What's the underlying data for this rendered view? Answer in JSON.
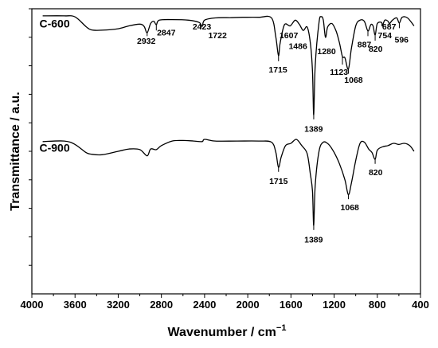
{
  "chart_data": {
    "type": "line",
    "xlabel": "Wavenumber / cm",
    "xlabel_sup": "−1",
    "ylabel": "Transmittance / a.u.",
    "xlim": [
      4000,
      400
    ],
    "x_reversed": true,
    "x_ticks": [
      "4000",
      "3600",
      "3200",
      "2800",
      "2400",
      "2000",
      "1600",
      "1200",
      "800",
      "400"
    ],
    "y_tick_labels_shown": false,
    "grid": false,
    "series": [
      {
        "name": "C-600",
        "points": [
          [
            3900,
            0.62
          ],
          [
            3700,
            0.62
          ],
          [
            3600,
            0.71
          ],
          [
            3500,
            1.55
          ],
          [
            3450,
            1.85
          ],
          [
            3350,
            1.88
          ],
          [
            3200,
            1.75
          ],
          [
            3100,
            1.5
          ],
          [
            3000,
            1.35
          ],
          [
            2960,
            1.55
          ],
          [
            2932,
            2.1
          ],
          [
            2900,
            1.3
          ],
          [
            2870,
            1.1
          ],
          [
            2847,
            1.4
          ],
          [
            2820,
            1.0
          ],
          [
            2700,
            0.95
          ],
          [
            2550,
            1.0
          ],
          [
            2450,
            1.2
          ],
          [
            2423,
            1.55
          ],
          [
            2400,
            1.0
          ],
          [
            2300,
            0.8
          ],
          [
            2150,
            0.78
          ],
          [
            2050,
            0.75
          ],
          [
            1900,
            0.75
          ],
          [
            1780,
            0.8
          ],
          [
            1740,
            2.5
          ],
          [
            1715,
            4.1
          ],
          [
            1700,
            3.0
          ],
          [
            1660,
            1.4
          ],
          [
            1607,
            1.5
          ],
          [
            1560,
            1.0
          ],
          [
            1520,
            1.4
          ],
          [
            1486,
            1.9
          ],
          [
            1450,
            1.6
          ],
          [
            1420,
            3.0
          ],
          [
            1400,
            5.5
          ],
          [
            1389,
            9.3
          ],
          [
            1375,
            5.0
          ],
          [
            1340,
            1.2
          ],
          [
            1320,
            0.7
          ],
          [
            1300,
            1.0
          ],
          [
            1280,
            2.5
          ],
          [
            1260,
            1.6
          ],
          [
            1220,
            1.3
          ],
          [
            1180,
            2.0
          ],
          [
            1150,
            3.0
          ],
          [
            1123,
            4.2
          ],
          [
            1100,
            4.3
          ],
          [
            1068,
            5.3
          ],
          [
            1040,
            3.5
          ],
          [
            1000,
            1.5
          ],
          [
            960,
            1.0
          ],
          [
            920,
            1.1
          ],
          [
            887,
            1.95
          ],
          [
            860,
            1.4
          ],
          [
            840,
            1.5
          ],
          [
            820,
            2.3
          ],
          [
            800,
            1.3
          ],
          [
            760,
            1.2
          ],
          [
            754,
            1.5
          ],
          [
            730,
            1.0
          ],
          [
            700,
            1.1
          ],
          [
            687,
            1.3
          ],
          [
            660,
            1.0
          ],
          [
            620,
            0.8
          ],
          [
            596,
            1.25
          ],
          [
            570,
            0.75
          ],
          [
            520,
            0.8
          ],
          [
            460,
            1.5
          ]
        ]
      },
      {
        "name": "C-900",
        "points": [
          [
            3900,
            11.65
          ],
          [
            3700,
            11.6
          ],
          [
            3600,
            11.9
          ],
          [
            3500,
            12.6
          ],
          [
            3450,
            12.75
          ],
          [
            3350,
            12.8
          ],
          [
            3200,
            12.5
          ],
          [
            3100,
            12.3
          ],
          [
            3000,
            12.35
          ],
          [
            2932,
            12.9
          ],
          [
            2900,
            12.3
          ],
          [
            2847,
            12.35
          ],
          [
            2800,
            12.0
          ],
          [
            2700,
            11.6
          ],
          [
            2600,
            11.55
          ],
          [
            2500,
            11.6
          ],
          [
            2423,
            11.65
          ],
          [
            2400,
            11.45
          ],
          [
            2300,
            11.6
          ],
          [
            2100,
            11.6
          ],
          [
            1900,
            11.6
          ],
          [
            1780,
            11.7
          ],
          [
            1740,
            12.6
          ],
          [
            1715,
            13.9
          ],
          [
            1690,
            13.0
          ],
          [
            1650,
            12.0
          ],
          [
            1600,
            11.8
          ],
          [
            1550,
            11.45
          ],
          [
            1500,
            12.0
          ],
          [
            1450,
            12.7
          ],
          [
            1420,
            14.5
          ],
          [
            1400,
            16.0
          ],
          [
            1389,
            19.0
          ],
          [
            1375,
            15.5
          ],
          [
            1340,
            12.5
          ],
          [
            1300,
            11.7
          ],
          [
            1250,
            11.9
          ],
          [
            1200,
            12.6
          ],
          [
            1150,
            13.6
          ],
          [
            1100,
            15.0
          ],
          [
            1068,
            16.3
          ],
          [
            1040,
            15.3
          ],
          [
            1000,
            13.3
          ],
          [
            960,
            11.8
          ],
          [
            920,
            11.7
          ],
          [
            880,
            12.3
          ],
          [
            850,
            12.6
          ],
          [
            820,
            13.2
          ],
          [
            800,
            12.4
          ],
          [
            750,
            12.1
          ],
          [
            700,
            12.0
          ],
          [
            650,
            11.8
          ],
          [
            600,
            11.9
          ],
          [
            550,
            11.8
          ],
          [
            500,
            12.0
          ],
          [
            460,
            12.5
          ]
        ]
      }
    ],
    "series_labels": [
      {
        "text": "C-600",
        "x": 3930,
        "y": 1.3
      },
      {
        "text": "C-900",
        "x": 3930,
        "y": 12.2
      }
    ],
    "annotations": [
      {
        "text": "2932",
        "x": 2940,
        "y": 2.8
      },
      {
        "text": "2847",
        "x": 2755,
        "y": 2.05
      },
      {
        "text": "2423",
        "x": 2425,
        "y": 1.55
      },
      {
        "text": "1722",
        "x": 2280,
        "y": 2.3
      },
      {
        "text": "1607",
        "x": 1620,
        "y": 2.3
      },
      {
        "text": "1486",
        "x": 1535,
        "y": 3.25
      },
      {
        "text": "1715",
        "x": 1720,
        "y": 5.3
      },
      {
        "text": "1280",
        "x": 1270,
        "y": 3.7
      },
      {
        "text": "1389",
        "x": 1390,
        "y": 10.5
      },
      {
        "text": "1123",
        "x": 1155,
        "y": 5.5
      },
      {
        "text": "1068",
        "x": 1020,
        "y": 6.2
      },
      {
        "text": "887",
        "x": 920,
        "y": 3.1
      },
      {
        "text": "820",
        "x": 815,
        "y": 3.5
      },
      {
        "text": "754",
        "x": 730,
        "y": 2.3
      },
      {
        "text": "687",
        "x": 690,
        "y": 1.55
      },
      {
        "text": "596",
        "x": 575,
        "y": 2.7
      },
      {
        "text": "1715",
        "x": 1715,
        "y": 15.1
      },
      {
        "text": "1389",
        "x": 1390,
        "y": 20.2
      },
      {
        "text": "1068",
        "x": 1055,
        "y": 17.4
      },
      {
        "text": "820",
        "x": 815,
        "y": 14.3
      }
    ],
    "peak_markers": [
      {
        "x": 2932,
        "from": 2.1,
        "to": 2.4
      },
      {
        "x": 2847,
        "from": 1.4,
        "to": 1.9
      },
      {
        "x": 1715,
        "from": 4.1,
        "to": 4.6
      },
      {
        "x": 1389,
        "from": 9.3,
        "to": 9.7
      },
      {
        "x": 1123,
        "from": 4.2,
        "to": 4.9
      },
      {
        "x": 1068,
        "from": 5.3,
        "to": 5.7
      },
      {
        "x": 887,
        "from": 1.95,
        "to": 2.4
      },
      {
        "x": 820,
        "from": 2.3,
        "to": 2.8
      },
      {
        "x": 596,
        "from": 1.25,
        "to": 1.7
      },
      {
        "x": 1715,
        "from": 13.9,
        "to": 14.3
      },
      {
        "x": 1389,
        "from": 19.0,
        "to": 19.4
      },
      {
        "x": 1068,
        "from": 16.3,
        "to": 16.7
      },
      {
        "x": 820,
        "from": 13.2,
        "to": 13.6
      }
    ],
    "y_tick_values": [
      0,
      2.5,
      5,
      7.5,
      10,
      12.5,
      15,
      17.5,
      20,
      22.5
    ]
  }
}
